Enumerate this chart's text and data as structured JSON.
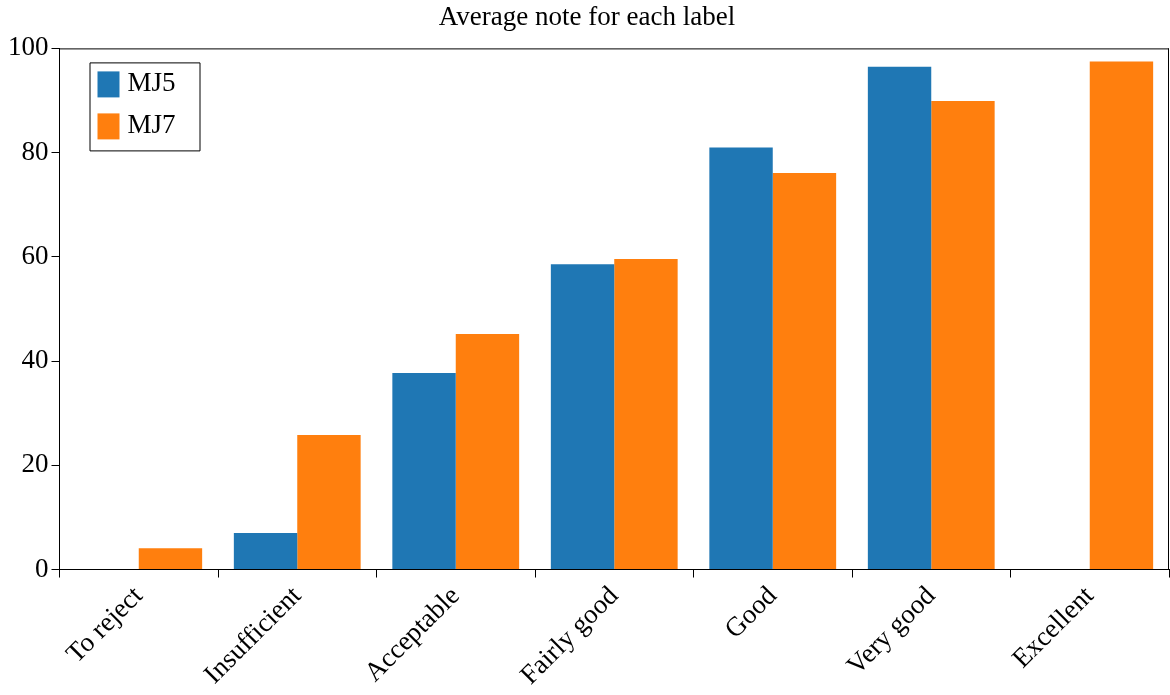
{
  "chart_data": {
    "type": "bar",
    "title": "Average note for each label",
    "categories": [
      "To reject",
      "Insufficient",
      "Acceptable",
      "Fairly good",
      "Good",
      "Very good",
      "Excellent"
    ],
    "series": [
      {
        "name": "MJ5",
        "color": "#1f77b4",
        "values": [
          null,
          7.0,
          37.7,
          58.6,
          81.0,
          96.5,
          null
        ]
      },
      {
        "name": "MJ7",
        "color": "#ff7f0e",
        "values": [
          4.1,
          25.8,
          45.2,
          59.6,
          76.1,
          89.9,
          97.5
        ]
      }
    ],
    "ylim": [
      0,
      100
    ],
    "yticks": [
      0,
      20,
      40,
      60,
      80,
      100
    ],
    "grid": false,
    "legend": "top left"
  }
}
